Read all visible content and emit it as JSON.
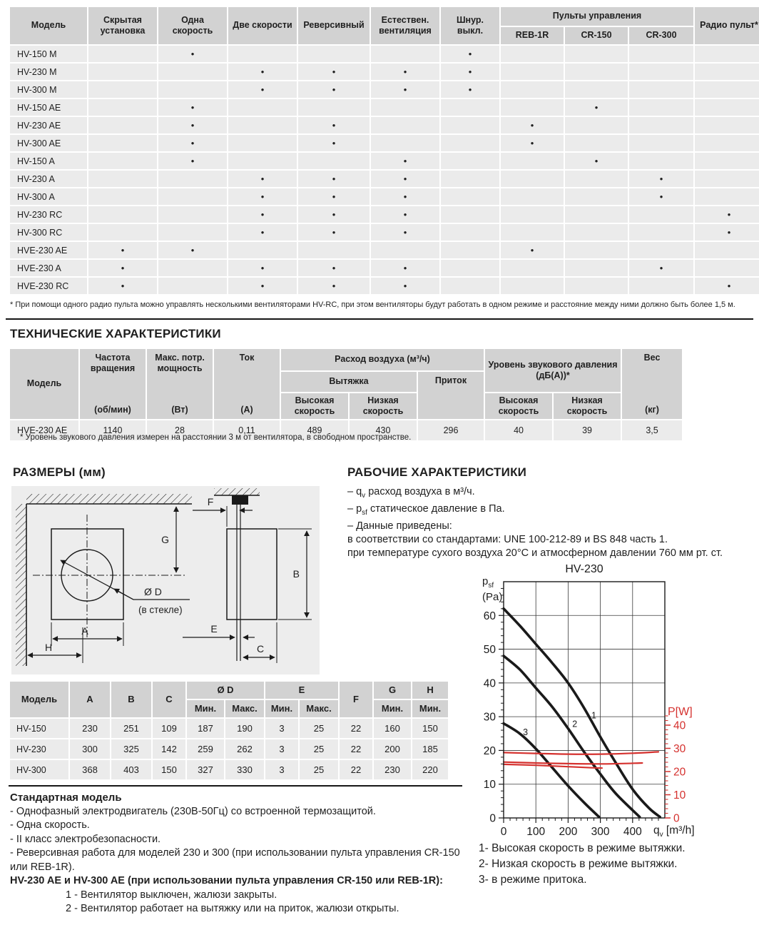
{
  "page": {
    "footnote_top": "* При помощи одного радио пульта можно управлять несколькими вентиляторами HV-RC, при этом вентиляторы будут работать в одном режиме и расстояние между ними должно быть более 1,5 м.",
    "headings": {
      "tech": "ТЕХНИЧЕСКИЕ ХАРАКТЕРИСТИКИ",
      "dims": "РАЗМЕРЫ (мм)",
      "performance": "РАБОЧИЕ ХАРАКТЕРИСТИКИ"
    }
  },
  "models_table": {
    "col_headers": [
      "Модель",
      "Скрытая установка",
      "Одна скорость",
      "Две скорости",
      "Реверсивный",
      "Естествен. вентиляция",
      "Шнур. выкл."
    ],
    "remote_group": "Пульты управления",
    "remote_cols": [
      "REB-1R",
      "CR-150",
      "CR-300"
    ],
    "radio_col": "Радио пульт*",
    "rows": [
      {
        "model": "HV-150 M",
        "dots": [
          0,
          1,
          0,
          0,
          0,
          1,
          0,
          0,
          0,
          0
        ]
      },
      {
        "model": "HV-230 M",
        "dots": [
          0,
          0,
          1,
          1,
          1,
          1,
          0,
          0,
          0,
          0
        ]
      },
      {
        "model": "HV-300 M",
        "dots": [
          0,
          0,
          1,
          1,
          1,
          1,
          0,
          0,
          0,
          0
        ]
      },
      {
        "model": "HV-150 AE",
        "dots": [
          0,
          1,
          0,
          0,
          0,
          0,
          0,
          1,
          0,
          0
        ]
      },
      {
        "model": "HV-230 AE",
        "dots": [
          0,
          1,
          0,
          1,
          0,
          0,
          1,
          0,
          0,
          0
        ]
      },
      {
        "model": "HV-300 AE",
        "dots": [
          0,
          1,
          0,
          1,
          0,
          0,
          1,
          0,
          0,
          0
        ]
      },
      {
        "model": "HV-150 A",
        "dots": [
          0,
          1,
          0,
          0,
          1,
          0,
          0,
          1,
          0,
          0
        ]
      },
      {
        "model": "HV-230 A",
        "dots": [
          0,
          0,
          1,
          1,
          1,
          0,
          0,
          0,
          1,
          0
        ]
      },
      {
        "model": "HV-300 A",
        "dots": [
          0,
          0,
          1,
          1,
          1,
          0,
          0,
          0,
          1,
          0
        ]
      },
      {
        "model": "HV-230 RC",
        "dots": [
          0,
          0,
          1,
          1,
          1,
          0,
          0,
          0,
          0,
          1
        ]
      },
      {
        "model": "HV-300 RC",
        "dots": [
          0,
          0,
          1,
          1,
          1,
          0,
          0,
          0,
          0,
          1
        ]
      },
      {
        "model": "HVE-230 AE",
        "dots": [
          1,
          1,
          0,
          0,
          0,
          0,
          1,
          0,
          0,
          0
        ]
      },
      {
        "model": "HVE-230 A",
        "dots": [
          1,
          0,
          1,
          1,
          1,
          0,
          0,
          0,
          1,
          0
        ]
      },
      {
        "model": "HVE-230 RC",
        "dots": [
          1,
          0,
          1,
          1,
          1,
          0,
          0,
          0,
          0,
          1
        ]
      }
    ]
  },
  "tech_table": {
    "headers": {
      "model": "Модель",
      "freq": "Частота вращения",
      "freq_u": "(об/мин)",
      "power": "Макс. потр. мощность",
      "power_u": "(Вт)",
      "current": "Ток",
      "current_u": "(А)",
      "airflow": "Расход воздуха (м³/ч)",
      "exhaust": "Вытяжка",
      "supply": "Приток",
      "high": "Высокая скорость",
      "low": "Низкая скорость",
      "noise": "Уровень звукового давления (дБ(А))*",
      "weight": "Вес",
      "weight_u": "(кг)"
    },
    "row": {
      "model": "HVE-230 AE",
      "values": [
        "1140",
        "28",
        "0,11",
        "489",
        "430",
        "296",
        "40",
        "39",
        "3,5"
      ]
    },
    "footnote": "* Уровень звукового давления измерен на расстоянии 3 м от вентилятора, в свободном пространстве."
  },
  "dims_table": {
    "headers": {
      "model": "Модель",
      "a": "A",
      "b": "B",
      "c": "C",
      "d": "Ø D",
      "e": "E",
      "f": "F",
      "g": "G",
      "h": "H",
      "min": "Мин.",
      "max": "Макс."
    },
    "rows": [
      {
        "model": "HV-150",
        "values": [
          "230",
          "251",
          "109",
          "187",
          "190",
          "3",
          "25",
          "22",
          "160",
          "150"
        ]
      },
      {
        "model": "HV-230",
        "values": [
          "300",
          "325",
          "142",
          "259",
          "262",
          "3",
          "25",
          "22",
          "200",
          "185"
        ]
      },
      {
        "model": "HV-300",
        "values": [
          "368",
          "403",
          "150",
          "327",
          "330",
          "3",
          "25",
          "22",
          "230",
          "220"
        ]
      }
    ]
  },
  "diagram": {
    "labels": {
      "a": "A",
      "b": "B",
      "c": "C",
      "d": "Ø D",
      "d_note": "(в стекле)",
      "e": "E",
      "f": "F",
      "g": "G",
      "h": "H"
    }
  },
  "performance": {
    "notes_html": [
      "– q<sub>v</sub> расход воздуха в м³/ч.",
      "– p<sub>sf</sub> статическое давление в Па.",
      "– Данные приведены:",
      "в соответствии со стандартами: UNE 100-212-89 и BS 848 часть 1.",
      "при температуре сухого воздуха 20°C и атмосферном давлении 760 мм рт. ст."
    ],
    "psf_label_html": "p<sub>sf</sub><br>(Pa)",
    "pw_label": "P[W]",
    "qv_label_html": "q<sub>v</sub> [m³/h]"
  },
  "chart_data": {
    "type": "line",
    "title": "HV-230",
    "left_axis": {
      "label": "psf (Pa)",
      "min": 0,
      "max": 70,
      "tick_labels": [
        0,
        10,
        20,
        30,
        40,
        50,
        60
      ],
      "minor_step": 2
    },
    "x_axis": {
      "label": "qv [m3/h]",
      "min": 0,
      "max": 500,
      "tick_labels": [
        0,
        100,
        200,
        300,
        400
      ],
      "minor_step": 20
    },
    "right_axis": {
      "label": "P[W]",
      "min": 0,
      "max": 44,
      "tick_labels": [
        0,
        10,
        20,
        30,
        40
      ],
      "minor_step": 2,
      "color": "#d5312e"
    },
    "grid": true,
    "series": [
      {
        "name": "Высокая скорость в режиме вытяжки",
        "axis": "left",
        "color": "#1a1a1a",
        "width": 3.6,
        "label": "1",
        "label_at": [
          272,
          29.5
        ],
        "points": [
          [
            0,
            62
          ],
          [
            50,
            57
          ],
          [
            100,
            51.5
          ],
          [
            150,
            46
          ],
          [
            200,
            40
          ],
          [
            250,
            32.5
          ],
          [
            300,
            24
          ],
          [
            350,
            16
          ],
          [
            400,
            8.5
          ],
          [
            450,
            3
          ],
          [
            485,
            0.3
          ]
        ]
      },
      {
        "name": "Низкая скорость в режиме вытяжки",
        "axis": "left",
        "color": "#1a1a1a",
        "width": 3.6,
        "label": "2",
        "label_at": [
          213,
          27
        ],
        "points": [
          [
            0,
            48
          ],
          [
            50,
            44
          ],
          [
            100,
            38.5
          ],
          [
            150,
            33
          ],
          [
            200,
            26.5
          ],
          [
            250,
            19.5
          ],
          [
            300,
            13
          ],
          [
            350,
            7
          ],
          [
            422,
            0.3
          ]
        ]
      },
      {
        "name": "в режиме притока",
        "axis": "left",
        "color": "#1a1a1a",
        "width": 3.6,
        "label": "3",
        "label_at": [
          60,
          24.5
        ],
        "points": [
          [
            0,
            28
          ],
          [
            50,
            25
          ],
          [
            100,
            20.5
          ],
          [
            150,
            15
          ],
          [
            200,
            9.5
          ],
          [
            250,
            4.5
          ],
          [
            296,
            0.3
          ]
        ]
      },
      {
        "name": "P, высокая скорость",
        "axis": "right",
        "color": "#d5312e",
        "width": 2.2,
        "points": [
          [
            0,
            28.2
          ],
          [
            100,
            27.8
          ],
          [
            200,
            27.5
          ],
          [
            300,
            27.5
          ],
          [
            400,
            27.9
          ],
          [
            480,
            28.5
          ]
        ]
      },
      {
        "name": "P, низкая скорость",
        "axis": "right",
        "color": "#d5312e",
        "width": 2.2,
        "points": [
          [
            0,
            24.1
          ],
          [
            100,
            23.7
          ],
          [
            200,
            23.4
          ],
          [
            320,
            23.3
          ],
          [
            430,
            23.7
          ]
        ]
      },
      {
        "name": "P, приток",
        "axis": "right",
        "color": "#d5312e",
        "width": 2.2,
        "points": [
          [
            0,
            23.1
          ],
          [
            100,
            22.7
          ],
          [
            200,
            22.1
          ],
          [
            280,
            21.6
          ],
          [
            305,
            21.5
          ]
        ]
      }
    ],
    "legend_position": "below"
  },
  "legend": [
    "1- Высокая скорость в режиме вытяжки.",
    "2- Низкая скорость в режиме вытяжки.",
    "3- в режиме притока."
  ],
  "standard_model": {
    "title": "Стандартная модель",
    "items": [
      "- Однофазный электродвигатель (230В-50Гц) со встроенной термозащитой.",
      "- Одна скорость.",
      "- II класс электробезопасности.",
      "- Реверсивная работа для моделей 230 и 300 (при использовании пульта управления CR-150 или REB-1R)."
    ],
    "bold_line": "HV-230 AE и HV-300 AE (при использовании пульта управления CR-150 или REB-1R):",
    "numbered": [
      "1 - Вентилятор выключен, жалюзи закрыты.",
      "2 - Вентилятор работает на вытяжку или на приток, жалюзи открыты."
    ]
  }
}
